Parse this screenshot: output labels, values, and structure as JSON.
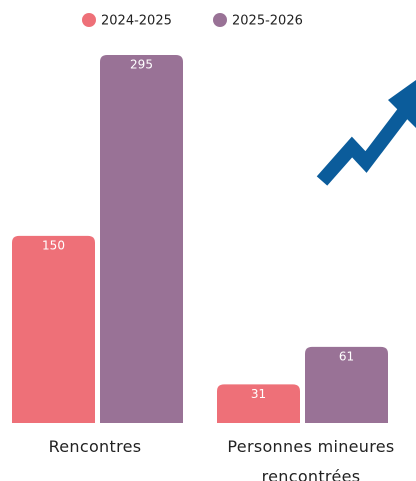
{
  "chart_data": {
    "type": "bar",
    "categories": [
      "Rencontres",
      "Personnes mineures rencontrées"
    ],
    "series": [
      {
        "name": "2024-2025",
        "color": "#ee7078",
        "values": [
          150,
          31
        ]
      },
      {
        "name": "2025-2026",
        "color": "#997296",
        "values": [
          295,
          61
        ]
      }
    ],
    "legend": "top",
    "grid": false
  }
}
